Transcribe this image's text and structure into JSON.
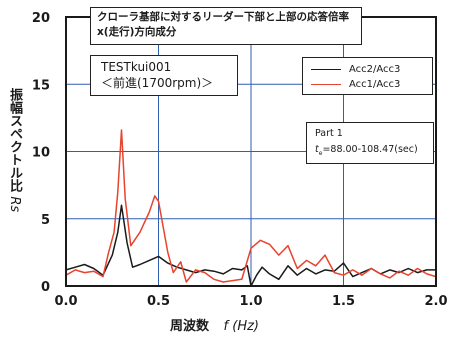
{
  "chart_data": {
    "type": "line",
    "title_lines": [
      "クローラ基部に対するリーダー下部と上部の応答倍率",
      "x(走行)方向成分"
    ],
    "test_name": "TESTkui001",
    "test_condition": "＜前進(1700rpm)＞",
    "part_label": "Part 1",
    "time_symbol": "t",
    "time_subscript": "e",
    "time_value": "=88.00-108.47(sec)",
    "xlabel": "周波数",
    "xlabel_symbol": "f (Hz)",
    "ylabel": "振幅スペクトル比",
    "ylabel_symbol": "Rs",
    "xlim": [
      0.0,
      2.0
    ],
    "ylim": [
      0,
      20
    ],
    "x_ticks": [
      "0.0",
      "0.5",
      "1.0",
      "1.5",
      "2.0"
    ],
    "y_ticks": [
      "0",
      "5",
      "10",
      "15",
      "20"
    ],
    "grid": true,
    "series": [
      {
        "name": "Acc2/Acc3",
        "color": "#1a1a1a",
        "x": [
          0,
          0.05,
          0.1,
          0.15,
          0.2,
          0.25,
          0.28,
          0.3,
          0.33,
          0.36,
          0.4,
          0.45,
          0.5,
          0.55,
          0.6,
          0.65,
          0.7,
          0.75,
          0.8,
          0.85,
          0.9,
          0.95,
          0.98,
          1.0,
          1.03,
          1.06,
          1.1,
          1.15,
          1.2,
          1.25,
          1.3,
          1.35,
          1.4,
          1.45,
          1.5,
          1.55,
          1.6,
          1.65,
          1.7,
          1.75,
          1.8,
          1.85,
          1.9,
          1.95,
          2.0
        ],
        "y": [
          1.2,
          1.4,
          1.6,
          1.3,
          0.8,
          2.3,
          4.0,
          6.0,
          3.2,
          1.4,
          1.6,
          1.9,
          2.2,
          1.7,
          1.4,
          1.2,
          1.0,
          1.2,
          1.1,
          0.9,
          1.3,
          1.2,
          1.5,
          0.0,
          0.8,
          1.4,
          0.9,
          0.5,
          1.5,
          0.8,
          1.3,
          0.9,
          1.2,
          1.1,
          1.7,
          0.7,
          1.0,
          1.3,
          0.9,
          1.2,
          1.0,
          1.3,
          1.0,
          1.2,
          1.2
        ]
      },
      {
        "name": "Acc1/Acc3",
        "color": "#e8432e",
        "x": [
          0,
          0.05,
          0.1,
          0.15,
          0.2,
          0.23,
          0.26,
          0.28,
          0.3,
          0.32,
          0.35,
          0.4,
          0.45,
          0.48,
          0.5,
          0.55,
          0.58,
          0.62,
          0.65,
          0.7,
          0.75,
          0.8,
          0.85,
          0.9,
          0.95,
          1.0,
          1.05,
          1.1,
          1.15,
          1.2,
          1.25,
          1.3,
          1.35,
          1.4,
          1.45,
          1.5,
          1.55,
          1.6,
          1.65,
          1.7,
          1.75,
          1.8,
          1.85,
          1.9,
          1.95,
          2.0
        ],
        "y": [
          0.8,
          1.2,
          1.0,
          1.1,
          0.7,
          2.5,
          4.0,
          7.0,
          11.6,
          6.5,
          3.0,
          4.0,
          5.5,
          6.7,
          6.3,
          2.5,
          1.0,
          1.8,
          0.3,
          1.2,
          1.0,
          0.5,
          0.3,
          0.4,
          0.5,
          2.8,
          3.4,
          3.1,
          2.3,
          3.0,
          1.3,
          1.9,
          1.5,
          2.3,
          1.0,
          0.8,
          1.2,
          0.8,
          1.3,
          0.9,
          0.6,
          1.1,
          0.8,
          1.3,
          0.9,
          0.7
        ]
      }
    ]
  }
}
